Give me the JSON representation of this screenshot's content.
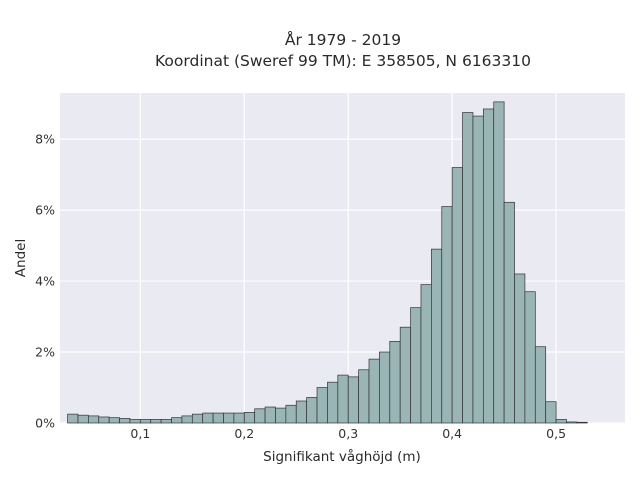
{
  "chart_data": {
    "type": "bar",
    "title": "År 1979 - 2019",
    "subtitle": "Koordinat (Sweref 99 TM): E 358505, N 6163310",
    "xlabel": "Signifikant våghöjd (m)",
    "ylabel": "Andel",
    "x_ticks": [
      0.1,
      0.2,
      0.3,
      0.4,
      0.5
    ],
    "x_tick_labels": [
      "0,1",
      "0,2",
      "0,3",
      "0,4",
      "0,5"
    ],
    "y_ticks": [
      0,
      2,
      4,
      6,
      8
    ],
    "y_tick_labels": [
      "0%",
      "2%",
      "4%",
      "6%",
      "8%"
    ],
    "xlim": [
      0.0227,
      0.5663
    ],
    "ylim": [
      0,
      9.3
    ],
    "grid": true,
    "bin_start": 0.03,
    "bin_width": 0.01,
    "values": [
      0.25,
      0.22,
      0.2,
      0.17,
      0.15,
      0.13,
      0.1,
      0.1,
      0.1,
      0.1,
      0.15,
      0.2,
      0.25,
      0.28,
      0.28,
      0.28,
      0.28,
      0.3,
      0.4,
      0.45,
      0.42,
      0.5,
      0.62,
      0.72,
      1.0,
      1.15,
      1.35,
      1.3,
      1.5,
      1.8,
      2.0,
      2.3,
      2.7,
      3.25,
      3.9,
      4.9,
      6.1,
      7.2,
      8.75,
      8.65,
      8.85,
      9.05,
      6.22,
      4.2,
      3.7,
      2.15,
      0.6,
      0.1,
      0.03,
      0.02
    ],
    "colors": {
      "bar_fill": "#9ab5b5",
      "bar_edge": "#333333",
      "plot_bg": "#eaeaf2",
      "grid": "#ffffff"
    }
  }
}
